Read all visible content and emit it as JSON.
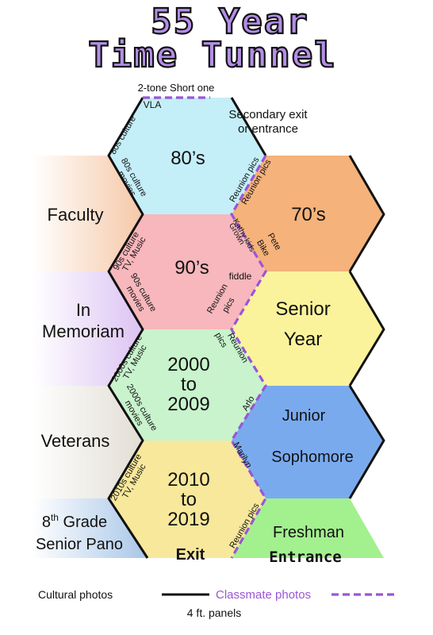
{
  "title": {
    "line1": "55 Year",
    "line2": "Time Tunnel"
  },
  "colors": {
    "title_fill": "#b48ee8",
    "title_stroke": "#111111",
    "hex_80s": "#c4eef8",
    "hex_90s": "#f7b7bc",
    "hex_2000s": "#c8f3cc",
    "hex_2010s": "#f7e89b",
    "hex_70s": "#f5b27a",
    "hex_senior": "#fbf39b",
    "hex_junior": "#7aaaee",
    "hex_freshman": "#a3f08f",
    "faculty": "#f6c8a8",
    "memoriam": "#dcc3f3",
    "veterans": "#e2ded4",
    "grade8": "#a8c6e8",
    "dashed": "#9a55d6",
    "solid": "#111111"
  },
  "top": {
    "short_one": "2-tone Short one",
    "vla": "VLA",
    "secondary": [
      "Secondary exit",
      "or entrance"
    ]
  },
  "center": {
    "h80": "80’s",
    "h90": "90’s",
    "h2000": [
      "2000",
      "to",
      "2009"
    ],
    "h2010": [
      "2010",
      "to",
      "2019"
    ],
    "exit": "Exit"
  },
  "right": {
    "h70": "70’s",
    "senior": [
      "Senior",
      "Year"
    ],
    "junior": "Junior",
    "sophomore": "Sophomore",
    "freshman": "Freshman",
    "entrance": "Entrance"
  },
  "left": {
    "faculty": "Faculty",
    "memoriam": [
      "In",
      "Memoriam"
    ],
    "veterans": "Veterans",
    "grade8_base": "8",
    "grade8_sup": "th",
    "grade8_rest": " Grade",
    "grade8_line2": "Senior Pano"
  },
  "side_labels": {
    "s80_culture": "80s culture",
    "s80_movies": [
      "80s culture",
      "movies"
    ],
    "s90_tv": [
      "90s culture",
      "TV, Music"
    ],
    "s90_movies": [
      "90s culture",
      "movies"
    ],
    "s2000_tv": [
      "2000s culture",
      "TV, Music"
    ],
    "s2000_movies": [
      "2000s culture",
      "movies"
    ],
    "s2010_tv": [
      "2010s culture",
      "TV, Music"
    ],
    "reunion": "Reunion pics",
    "reunion_split": [
      "Reunion",
      "pics"
    ],
    "kathy": [
      "Kathy kids",
      "Grown"
    ],
    "pete": [
      "Pete",
      "Bike"
    ],
    "fiddle": "fiddle",
    "arlo": "Arlo",
    "marilyn": "Marilyn"
  },
  "legend": {
    "cultural": "Cultural photos",
    "classmate": "Classmate photos",
    "panels": "4 ft. panels"
  }
}
